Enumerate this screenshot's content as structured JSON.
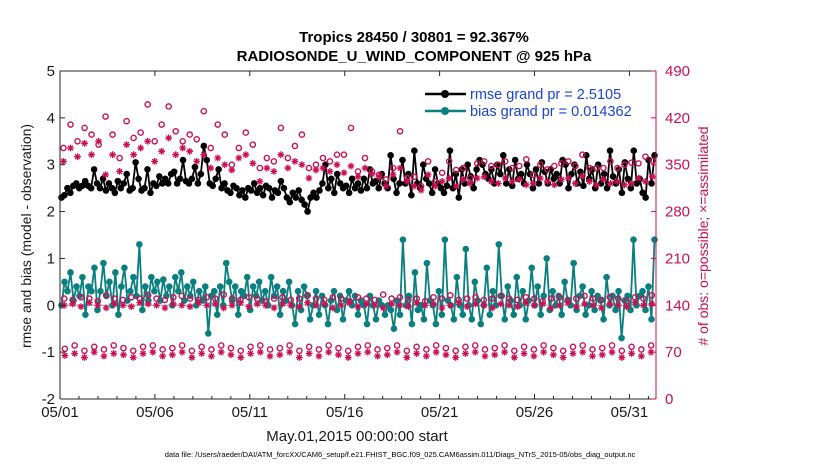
{
  "colors": {
    "rmse": "#000000",
    "bias": "#0a7f7f",
    "obs": "#cc0f54",
    "zero_line": "#b5b5b5",
    "legend_text": "#1a44d6"
  },
  "chart_data": {
    "type": "line",
    "title": "Tropics 28450 / 30801 = 92.367%",
    "subtitle": "RADIOSONDE_U_WIND_COMPONENT @ 925 hPa",
    "xlabel": "May.01,2015 00:00:00 start",
    "ylabel": "rmse and bias (model - observation)",
    "ylabel_right": "# of obs: o=possible; ×=assimilated",
    "footnote": "data file: /Users/raeder/DAI/ATM_forcXX/CAM6_setup/f.e21.FHIST_BGC.f09_025.CAM6assim.011/Diags_NTrS_2015-05/obs_diag_output.nc",
    "xlim": [
      0,
      31.4
    ],
    "ylim": [
      -2,
      5
    ],
    "ylim_right": [
      0,
      490
    ],
    "x_ticks": [
      {
        "x": 0,
        "label": "05/01"
      },
      {
        "x": 5,
        "label": "05/06"
      },
      {
        "x": 10,
        "label": "05/11"
      },
      {
        "x": 15,
        "label": "05/16"
      },
      {
        "x": 20,
        "label": "05/21"
      },
      {
        "x": 25,
        "label": "05/26"
      },
      {
        "x": 30,
        "label": "05/31"
      }
    ],
    "y_ticks_left": [
      "-2",
      "-1",
      "0",
      "1",
      "2",
      "3",
      "4",
      "5"
    ],
    "y_tick_values_left": [
      -2,
      -1,
      0,
      1,
      2,
      3,
      4,
      5
    ],
    "y_ticks_right": [
      "0",
      "70",
      "140",
      "210",
      "280",
      "350",
      "420",
      "490"
    ],
    "y_tick_values_right": [
      0,
      70,
      140,
      210,
      280,
      350,
      420,
      490
    ],
    "legend_position": "top-right",
    "series": [
      {
        "name": "rmse",
        "legend": "rmse grand pr = 2.5105",
        "axis": "left",
        "style": "line-dot",
        "values": [
          2.3,
          2.35,
          2.5,
          2.4,
          2.55,
          2.6,
          2.5,
          2.55,
          2.65,
          2.55,
          2.5,
          2.9,
          2.6,
          2.5,
          2.7,
          2.45,
          2.6,
          2.5,
          2.4,
          2.65,
          2.5,
          2.6,
          2.8,
          2.45,
          2.5,
          3.05,
          2.7,
          2.45,
          2.5,
          2.9,
          2.4,
          2.6,
          2.55,
          2.75,
          2.6,
          2.7,
          2.6,
          2.8,
          2.85,
          2.6,
          2.7,
          3.1,
          2.65,
          2.6,
          2.7,
          2.95,
          2.6,
          2.8,
          3.4,
          3.1,
          2.6,
          2.55,
          2.7,
          2.9,
          2.5,
          2.6,
          2.45,
          2.4,
          2.55,
          2.5,
          2.35,
          2.45,
          2.3,
          2.5,
          2.45,
          2.6,
          2.4,
          2.5,
          2.35,
          2.55,
          2.5,
          2.3,
          2.45,
          2.4,
          2.65,
          2.5,
          2.3,
          2.2,
          2.4,
          2.3,
          2.45,
          2.25,
          2.15,
          2.0,
          2.3,
          2.4,
          2.3,
          2.45,
          2.6,
          3.0,
          2.5,
          2.7,
          2.4,
          2.8,
          2.6,
          2.5,
          2.55,
          2.4,
          2.7,
          2.5,
          2.6,
          2.45,
          2.7,
          2.5,
          2.9,
          2.6,
          2.65,
          2.5,
          2.8,
          2.6,
          2.5,
          3.2,
          2.7,
          2.4,
          2.6,
          3.1,
          2.6,
          2.8,
          2.35,
          3.3,
          2.6,
          2.5,
          3.0,
          2.7,
          2.6,
          2.4,
          2.9,
          2.6,
          2.5,
          2.4,
          2.55,
          3.3,
          2.5,
          2.8,
          2.3,
          2.9,
          2.6,
          3.0,
          2.75,
          2.5,
          2.9,
          3.1,
          3.0,
          2.8,
          2.7,
          2.9,
          2.6,
          3.0,
          2.8,
          3.2,
          2.6,
          2.9,
          2.55,
          3.1,
          2.7,
          2.8,
          2.6,
          3.0,
          2.8,
          2.5,
          2.9,
          2.6,
          3.05,
          2.85,
          2.6,
          2.9,
          2.7,
          2.8,
          2.6,
          3.1,
          3.0,
          2.5,
          2.8,
          3.0,
          2.6,
          2.85,
          2.55,
          3.2,
          2.7,
          2.9,
          2.5,
          3.0,
          2.6,
          2.8,
          2.5,
          3.3,
          2.75,
          2.6,
          2.9,
          2.4,
          3.05,
          2.7,
          2.5,
          3.3,
          2.6,
          2.7,
          2.4,
          2.3,
          3.1,
          2.6,
          3.2
        ]
      },
      {
        "name": "bias",
        "legend": "bias grand pr = 0.014362",
        "axis": "left",
        "style": "line-dot",
        "values": [
          0.0,
          0.5,
          0.3,
          0.7,
          0.1,
          0.4,
          0.2,
          0.6,
          -0.2,
          0.4,
          0.3,
          0.8,
          -0.1,
          0.3,
          0.9,
          0.2,
          0.5,
          0.0,
          0.7,
          -0.2,
          0.4,
          0.8,
          0.1,
          0.3,
          0.6,
          0.2,
          1.3,
          -0.1,
          0.4,
          0.1,
          0.6,
          0.3,
          0.5,
          0.1,
          0.55,
          0.2,
          0.4,
          0.0,
          0.6,
          0.3,
          0.7,
          0.1,
          0.4,
          0.2,
          0.5,
          0.0,
          0.3,
          0.1,
          0.4,
          -0.6,
          0.2,
          0.3,
          -0.2,
          0.4,
          0.0,
          0.9,
          0.5,
          0.1,
          0.4,
          -0.2,
          0.3,
          0.2,
          0.6,
          -0.1,
          0.4,
          0.2,
          0.5,
          0.1,
          0.3,
          0.0,
          0.6,
          0.2,
          0.4,
          -0.2,
          0.3,
          0.1,
          0.5,
          0.0,
          -0.4,
          0.3,
          -0.1,
          0.4,
          0.2,
          -0.3,
          0.0,
          0.3,
          -0.2,
          0.2,
          0.0,
          -0.4,
          0.1,
          0.3,
          -0.1,
          0.2,
          -0.3,
          0.1,
          0.3,
          0.0,
          0.2,
          -0.2,
          0.1,
          0.0,
          -0.4,
          0.2,
          0.0,
          -0.3,
          0.1,
          0.0,
          -0.2,
          0.0,
          -0.1,
          -0.5,
          0.1,
          -0.2,
          1.4,
          0.0,
          0.2,
          -0.4,
          0.7,
          -0.1,
          0.0,
          -0.3,
          0.9,
          0.1,
          0.0,
          -0.4,
          0.3,
          -0.2,
          1.4,
          0.1,
          0.0,
          -0.3,
          0.6,
          0.0,
          -0.2,
          1.2,
          0.0,
          -0.3,
          0.5,
          0.1,
          -0.4,
          0.0,
          0.8,
          -0.2,
          0.3,
          0.0,
          1.3,
          0.2,
          -0.3,
          0.4,
          0.1,
          -0.2,
          0.6,
          0.0,
          0.3,
          -0.3,
          0.1,
          0.8,
          0.0,
          0.4,
          -0.2,
          0.2,
          1.0,
          -0.1,
          0.3,
          0.0,
          0.2,
          -0.2,
          0.5,
          0.1,
          0.0,
          0.9,
          -0.1,
          0.2,
          0.4,
          -0.2,
          0.0,
          0.3,
          -0.1,
          0.2,
          0.1,
          -0.3,
          0.6,
          0.0,
          0.2,
          -0.1,
          0.3,
          -0.7,
          0.1,
          0.2,
          -0.1,
          1.4,
          0.0,
          0.2,
          0.3,
          -0.1,
          0.4,
          -0.3,
          1.4
        ]
      },
      {
        "name": "possible_upper",
        "axis": "right",
        "style": "circle",
        "values": [
          375,
          410,
          385,
          405,
          395,
          380,
          422,
          395,
          360,
          415,
          390,
          398,
          440,
          385,
          410,
          437,
          400,
          385,
          395,
          388,
          430,
          375,
          410,
          395,
          350,
          375,
          398,
          380,
          345,
          360,
          355,
          405,
          360,
          378,
          395,
          345,
          350,
          360,
          355,
          365,
          365,
          405,
          340,
          360,
          340,
          335,
          328,
          345,
          400,
          330,
          332,
          318,
          355,
          325,
          338,
          355,
          342,
          345,
          330,
          352,
          355,
          348,
          350,
          355,
          345,
          348,
          358,
          335,
          350,
          343,
          348,
          352,
          355,
          348,
          365,
          345,
          345,
          345,
          355,
          345,
          350,
          353,
          352,
          362,
          356
        ]
      },
      {
        "name": "assimilated_upper",
        "axis": "right",
        "style": "asterisk",
        "values": [
          355,
          375,
          362,
          382,
          365,
          385,
          335,
          365,
          340,
          380,
          365,
          375,
          385,
          355,
          370,
          390,
          365,
          375,
          370,
          355,
          365,
          345,
          360,
          350,
          342,
          360,
          365,
          352,
          325,
          345,
          340,
          365,
          345,
          355,
          350,
          330,
          342,
          345,
          340,
          350,
          338,
          348,
          332,
          345,
          336,
          332,
          318,
          335,
          345,
          325,
          318,
          312,
          335,
          318,
          325,
          330,
          318,
          328,
          322,
          330,
          332,
          325,
          322,
          330,
          325,
          328,
          320,
          322,
          330,
          325,
          320,
          328,
          330,
          322,
          333,
          325,
          320,
          328,
          322,
          325,
          320,
          322,
          330,
          325,
          332
        ]
      },
      {
        "name": "possible_mid",
        "axis": "right",
        "style": "circle",
        "values": [
          150,
          148,
          152,
          150,
          146,
          155,
          150,
          148,
          152,
          150,
          155,
          150,
          148,
          152,
          154,
          150,
          148,
          152,
          150,
          156,
          150,
          148,
          152,
          150,
          146,
          150,
          152,
          148,
          150,
          155,
          150,
          148,
          152,
          150,
          146,
          152,
          150,
          148,
          156,
          150,
          152,
          148,
          150,
          146,
          152,
          150,
          155,
          148,
          150,
          152,
          148,
          150,
          154,
          150,
          148,
          152,
          150,
          146,
          150,
          152,
          148,
          150,
          154,
          150,
          148,
          152,
          150,
          146,
          152,
          150,
          155
        ]
      },
      {
        "name": "assimilated_mid",
        "axis": "right",
        "style": "asterisk",
        "values": [
          140,
          142,
          138,
          144,
          140,
          136,
          142,
          140,
          138,
          144,
          142,
          140,
          136,
          142,
          140,
          138,
          144,
          140,
          142,
          136,
          140,
          144,
          138,
          142,
          140,
          136,
          142,
          140,
          138,
          144,
          140,
          142,
          136,
          140,
          144,
          138,
          142,
          140,
          136,
          142,
          140,
          138,
          144,
          140,
          142,
          136,
          140,
          144,
          138,
          142,
          140,
          136,
          142,
          140,
          138,
          144,
          140,
          142,
          136,
          140,
          144,
          138,
          142,
          140,
          136,
          142,
          140,
          138,
          144,
          140,
          142
        ]
      },
      {
        "name": "possible_lower",
        "axis": "right",
        "style": "circle",
        "values": [
          75,
          80,
          72,
          78,
          74,
          80,
          76,
          72,
          78,
          80,
          74,
          76,
          80,
          72,
          78,
          74,
          80,
          76,
          72,
          78,
          80,
          74,
          76,
          80,
          72,
          78,
          74,
          80,
          76,
          72,
          78,
          80,
          74,
          76,
          80,
          72,
          78,
          74,
          80,
          76,
          72,
          78,
          80,
          74,
          76,
          80,
          72,
          78,
          74,
          80,
          76,
          72,
          78,
          80,
          74,
          76,
          80,
          72,
          78,
          74,
          80
        ]
      },
      {
        "name": "assimilated_lower",
        "axis": "right",
        "style": "asterisk",
        "values": [
          65,
          68,
          62,
          70,
          64,
          68,
          66,
          62,
          68,
          70,
          64,
          66,
          70,
          62,
          68,
          64,
          70,
          66,
          62,
          68,
          70,
          64,
          66,
          70,
          62,
          68,
          64,
          70,
          66,
          62,
          68,
          70,
          64,
          66,
          70,
          62,
          68,
          64,
          70,
          66,
          62,
          68,
          70,
          64,
          66,
          70,
          62,
          68,
          64,
          70,
          66,
          62,
          68,
          70,
          64,
          66,
          70,
          62,
          68,
          64,
          70
        ]
      }
    ]
  }
}
